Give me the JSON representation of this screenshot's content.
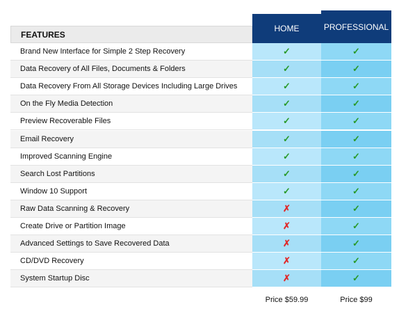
{
  "header": {
    "features": "FEATURES",
    "home": "HOME",
    "professional": "PROFESSIONAL"
  },
  "table": {
    "rows": [
      [
        "Brand New Interface for Simple 2 Step Recovery",
        "✓",
        "✓"
      ],
      [
        "Data Recovery of All Files, Documents & Folders",
        "✓",
        "✓"
      ],
      [
        "Data Recovery From All Storage Devices Including Large Drives",
        "✓",
        "✓"
      ],
      [
        "On the Fly Media Detection",
        "✓",
        "✓"
      ],
      [
        "Preview Recoverable Files",
        "✓",
        "✓"
      ],
      [
        "Email Recovery",
        "✓",
        "✓"
      ],
      [
        "Improved Scanning Engine",
        "✓",
        "✓"
      ],
      [
        "Search Lost Partitions",
        "✓",
        "✓"
      ],
      [
        "Window 10 Support",
        "✓",
        "✓"
      ],
      [
        "Raw Data Scanning & Recovery",
        "✗",
        "✓"
      ],
      [
        "Create Drive or Partition Image",
        "✗",
        "✓"
      ],
      [
        "Advanced Settings to Save Recovered Data",
        "✗",
        "✓"
      ],
      [
        "CD/DVD Recovery",
        "✗",
        "✓"
      ],
      [
        "System Startup Disc",
        "✗",
        "✓"
      ]
    ]
  },
  "footer": {
    "home_price": "Price $59.99",
    "professional_price": "Price $99"
  }
}
